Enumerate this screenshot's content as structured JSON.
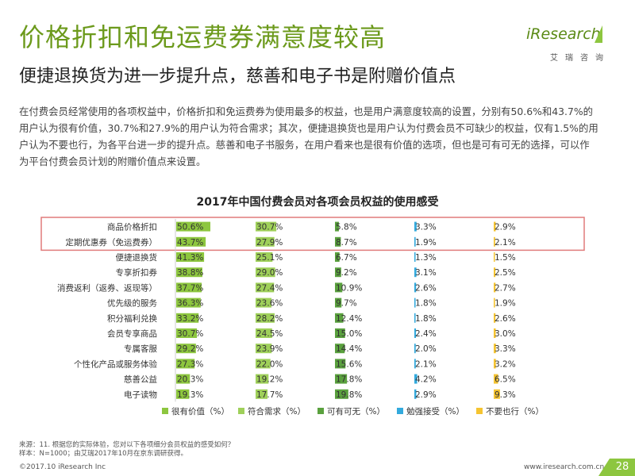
{
  "header": {
    "title": "价格折扣和免运费券满意度较高",
    "subtitle": "便捷退换货为进一步提升点，慈善和电子书是附赠价值点",
    "summary": "在付费会员经常使用的各项权益中，价格折扣和免运费券为使用最多的权益，也是用户满意度较高的设置，分别有50.6%和43.7%的用户认为很有价值，30.7%和27.9%的用户认为符合需求；其次，便捷退换货也是用户认为付费会员不可缺少的权益，仅有1.5%的用户认为不要也行，为各平台进一步的提升点。慈善和电子书服务，在用户看来也是很有价值的选项，但也是可有可无的选择，可以作为平台付费会员计划的附赠价值点来设置。"
  },
  "logo": {
    "text": "iResearch",
    "sub": "艾瑞咨询"
  },
  "chart_data": {
    "type": "bar",
    "title": "2017年中国付费会员对各项会员权益的使用感受",
    "categories": [
      "商品价格折扣",
      "定期优惠券（免运费券）",
      "便捷退换货",
      "专享折扣券",
      "消费返利（返券、返现等）",
      "优先级的服务",
      "积分福利兑换",
      "会员专享商品",
      "专属客服",
      "个性化产品或服务体验",
      "慈善公益",
      "电子读物"
    ],
    "series": [
      {
        "name": "很有价值（%）",
        "color": "#8dc63f",
        "values": [
          50.6,
          43.7,
          41.3,
          38.8,
          37.7,
          36.3,
          33.2,
          30.7,
          29.2,
          27.3,
          20.3,
          19.3
        ]
      },
      {
        "name": "符合需求（%）",
        "color": "#9fd05a",
        "values": [
          30.7,
          27.9,
          25.1,
          29.0,
          27.4,
          23.6,
          28.2,
          24.5,
          23.9,
          22.0,
          19.2,
          17.7
        ]
      },
      {
        "name": "可有可无（%）",
        "color": "#5aa13e",
        "values": [
          5.8,
          8.7,
          6.7,
          9.2,
          10.9,
          9.7,
          12.4,
          15.0,
          14.4,
          15.6,
          17.8,
          19.8
        ]
      },
      {
        "name": "勉强接受（%）",
        "color": "#33aadd",
        "values": [
          3.3,
          1.9,
          1.3,
          3.1,
          2.6,
          1.8,
          1.8,
          2.4,
          2.0,
          2.1,
          4.2,
          2.9
        ]
      },
      {
        "name": "不要也行（%）",
        "color": "#f5c431",
        "values": [
          2.9,
          2.1,
          1.5,
          2.5,
          2.7,
          1.9,
          2.6,
          3.0,
          3.3,
          3.2,
          6.5,
          9.3
        ]
      }
    ],
    "value_labels": [
      [
        "50.6%",
        "43.7%",
        "41.3%",
        "38.8%",
        "37.7%",
        "36.3%",
        "33.2%",
        "30.7%",
        "29.2%",
        "27.3%",
        "20.3%",
        "19.3%"
      ],
      [
        "30.7%",
        "27.9%",
        "25.1%",
        "29.0%",
        "27.4%",
        "23.6%",
        "28.2%",
        "24.5%",
        "23.9%",
        "22.0%",
        "19.2%",
        "17.7%"
      ],
      [
        "5.8%",
        "8.7%",
        "6.7%",
        "9.2%",
        "10.9%",
        "9.7%",
        "12.4%",
        "15.0%",
        "14.4%",
        "15.6%",
        "17.8%",
        "19.8%"
      ],
      [
        "3.3%",
        "1.9%",
        "1.3%",
        "3.1%",
        "2.6%",
        "1.8%",
        "1.8%",
        "2.4%",
        "2.0%",
        "2.1%",
        "4.2%",
        "2.9%"
      ],
      [
        "2.9%",
        "2.1%",
        "1.5%",
        "2.5%",
        "2.7%",
        "1.9%",
        "2.6%",
        "3.0%",
        "3.3%",
        "3.2%",
        "6.5%",
        "9.3%"
      ]
    ],
    "highlighted_categories": [
      "商品价格折扣",
      "定期优惠券（免运费券）"
    ],
    "highlight_color": "#e07b7b",
    "legend_position": "bottom"
  },
  "footer": {
    "source_line1": "来源：11. 根据您的实际体验，您对以下各项细分会员权益的感受如何？",
    "source_line2": "样本：N=1000；由艾瑞2017年10月在京东调研获得。",
    "copyright": "©2017.10 iResearch Inc",
    "website": "www.iresearch.com.cn",
    "page_number": "28"
  }
}
